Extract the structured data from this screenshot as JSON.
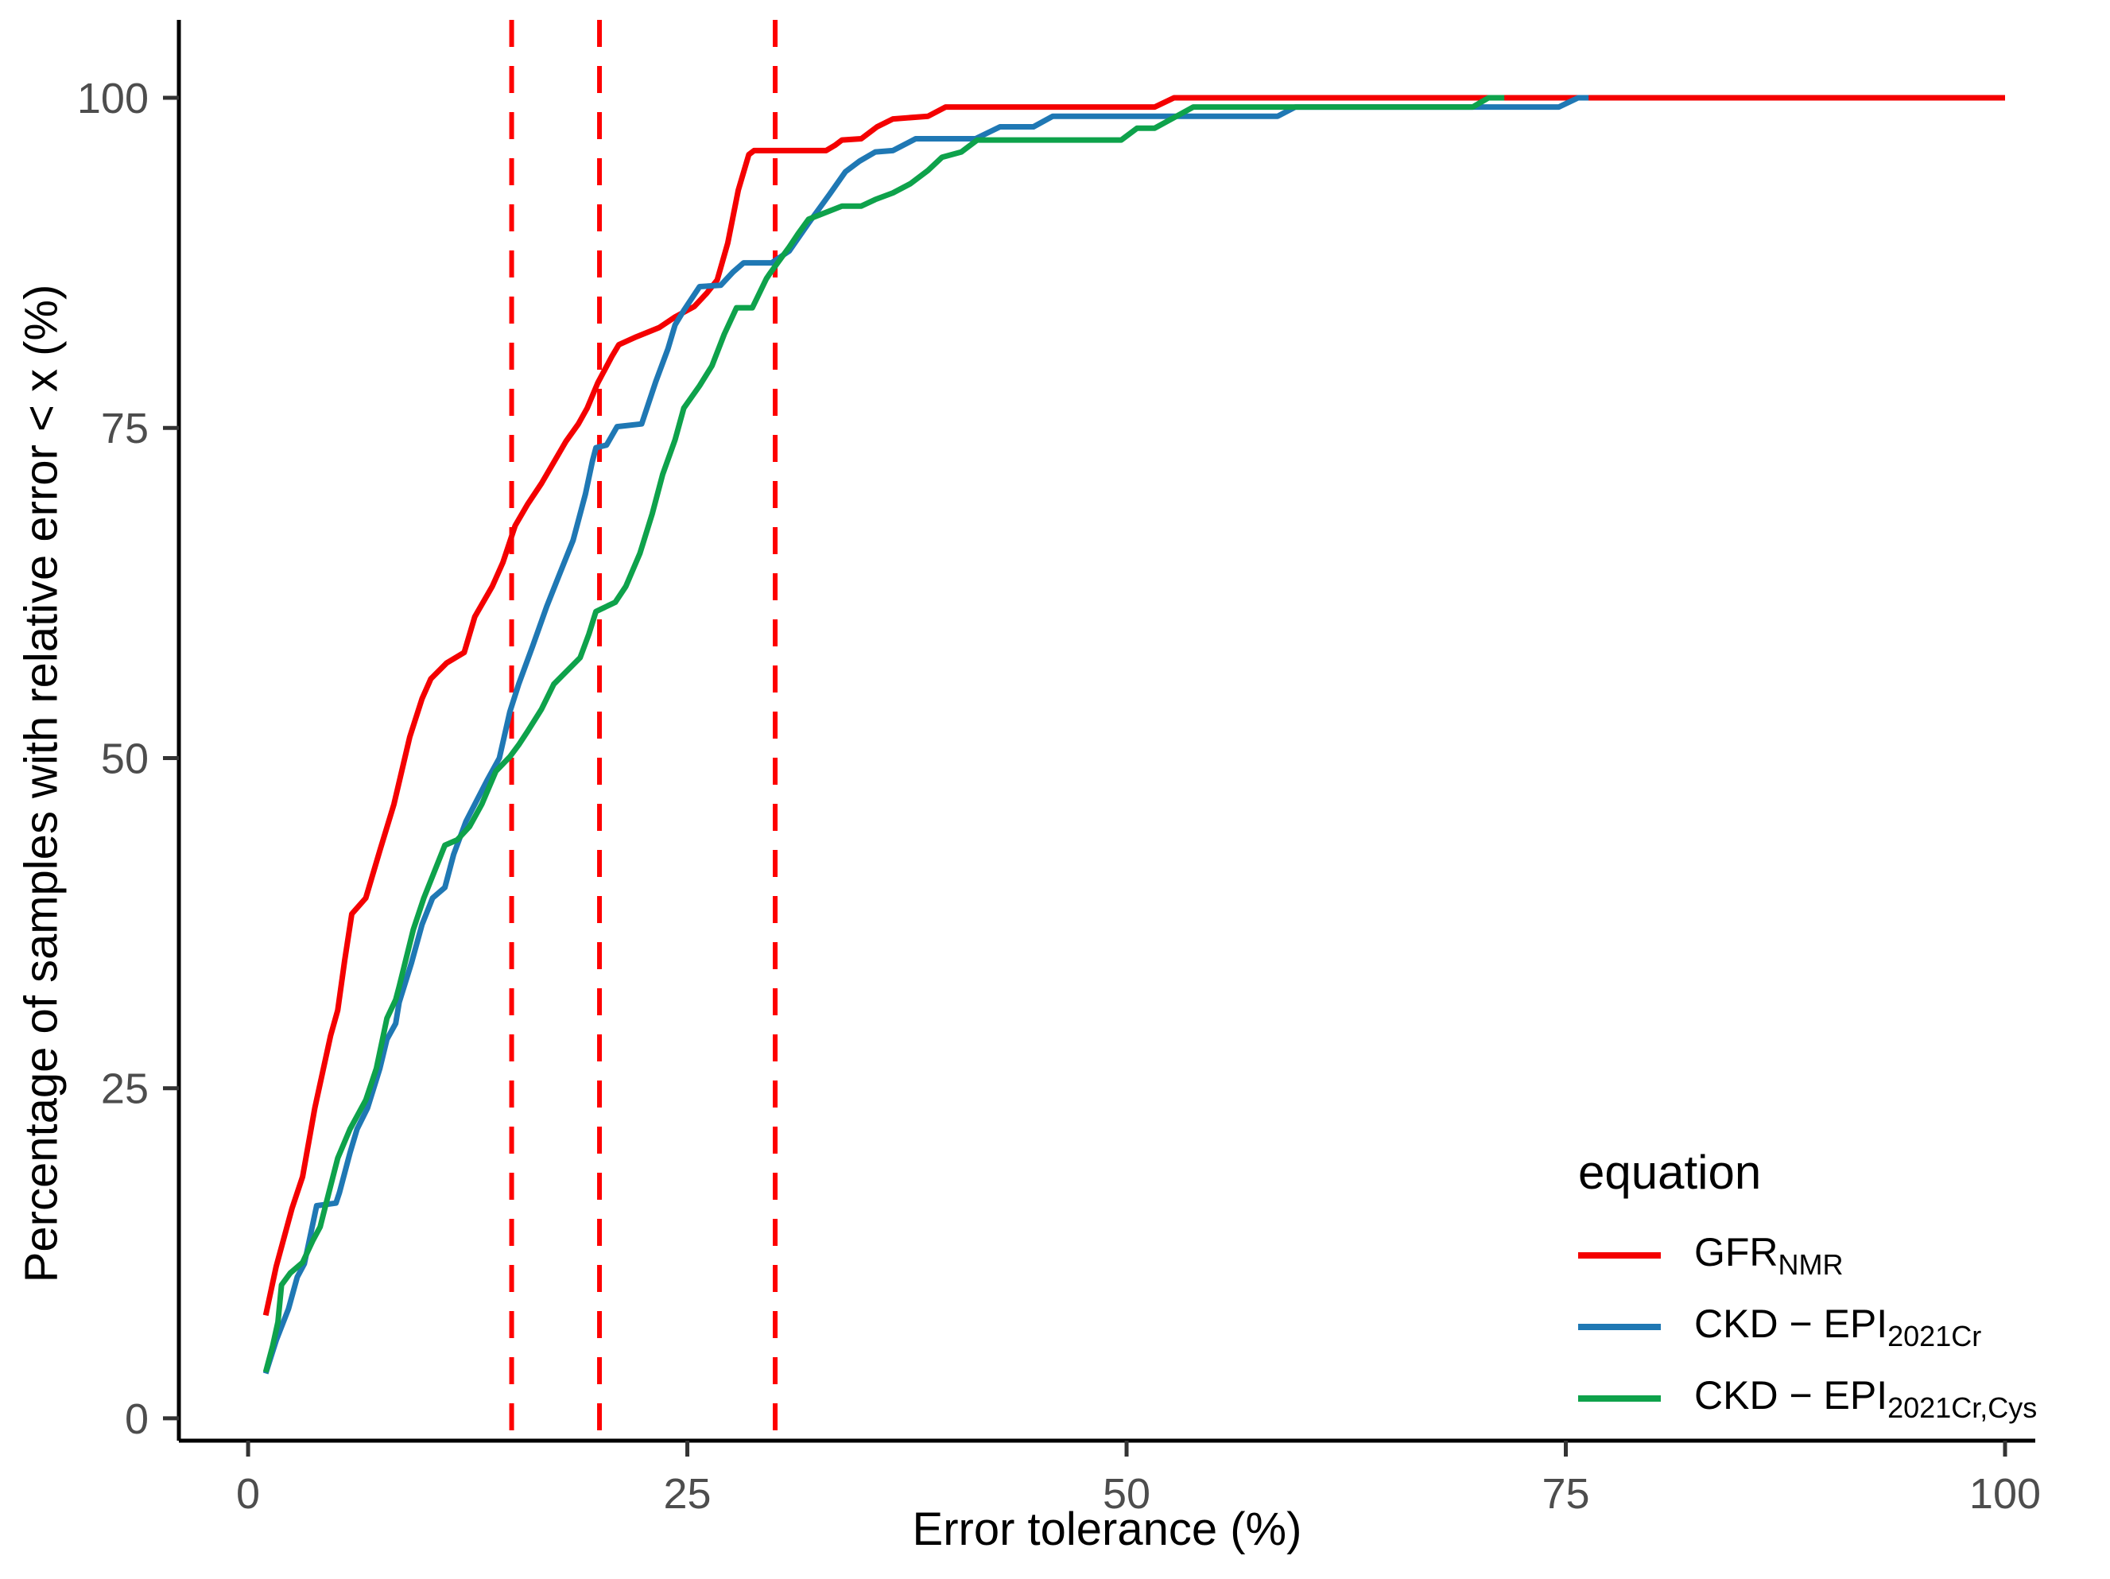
{
  "chart_data": {
    "type": "line",
    "subtype": "ecdf-step-curves",
    "title": "",
    "xlabel": "Error tolerance (%)",
    "ylabel": "Percentage of samples with relative error < x (%)",
    "x_ticks": [
      0,
      25,
      50,
      75,
      100
    ],
    "y_ticks": [
      0,
      25,
      50,
      75,
      100
    ],
    "xlim": [
      -3.94,
      101.72
    ],
    "ylim": [
      -1.69,
      105.9
    ],
    "grid": "off",
    "axis_color": "#000000",
    "tick_label_color": "#4d4d4d",
    "reference_lines": {
      "color": "#fe0000",
      "style": "dashed",
      "x_values": [
        15,
        20,
        30
      ]
    },
    "legend": {
      "position": "bottom-right-inside",
      "title": "equation",
      "entries": [
        {
          "main": "GFR",
          "sub": "NMR",
          "color": "#f40000"
        },
        {
          "main": "CKD − EPI",
          "sub": "2021Cr",
          "color": "#1f78b4"
        },
        {
          "main": "CKD − EPI",
          "sub": "2021Cr,Cys",
          "color": "#0ea24b"
        }
      ]
    },
    "series": [
      {
        "name": "GFR_NMR",
        "color": "#f40000",
        "points": [
          [
            1,
            7.8
          ],
          [
            1.6,
            11.5
          ],
          [
            2.5,
            15.9
          ],
          [
            3.1,
            18.3
          ],
          [
            3.8,
            23.5
          ],
          [
            4.7,
            29
          ],
          [
            5.1,
            30.9
          ],
          [
            5.5,
            34.7
          ],
          [
            5.9,
            38.2
          ],
          [
            6.7,
            39.4
          ],
          [
            7.5,
            43
          ],
          [
            8.3,
            46.5
          ],
          [
            9.2,
            51.6
          ],
          [
            9.9,
            54.5
          ],
          [
            10.4,
            56
          ],
          [
            11.3,
            57.2
          ],
          [
            12.3,
            58
          ],
          [
            12.9,
            60.7
          ],
          [
            13.9,
            63
          ],
          [
            14.5,
            64.8
          ],
          [
            15.2,
            67.6
          ],
          [
            15.9,
            69.2
          ],
          [
            16.7,
            70.8
          ],
          [
            17.4,
            72.4
          ],
          [
            18.1,
            74
          ],
          [
            18.8,
            75.3
          ],
          [
            19.3,
            76.5
          ],
          [
            19.9,
            78.4
          ],
          [
            20.7,
            80.4
          ],
          [
            21.1,
            81.3
          ],
          [
            22.1,
            81.9
          ],
          [
            23.4,
            82.6
          ],
          [
            24.3,
            83.4
          ],
          [
            25.4,
            84.2
          ],
          [
            26.1,
            85.2
          ],
          [
            26.7,
            86.2
          ],
          [
            27.3,
            89
          ],
          [
            27.9,
            93
          ],
          [
            28.5,
            95.7
          ],
          [
            28.8,
            96
          ],
          [
            32.9,
            96
          ],
          [
            33.4,
            96.4
          ],
          [
            33.8,
            96.8
          ],
          [
            34.9,
            96.9
          ],
          [
            35.8,
            97.8
          ],
          [
            36.7,
            98.4
          ],
          [
            38.7,
            98.6
          ],
          [
            39.7,
            99.3
          ],
          [
            51.6,
            99.3
          ],
          [
            52.7,
            100
          ],
          [
            100,
            100
          ]
        ]
      },
      {
        "name": "CKD-EPI_2021Cr",
        "color": "#1f78b4",
        "points": [
          [
            1,
            3.4
          ],
          [
            1.6,
            5.9
          ],
          [
            2.3,
            8.3
          ],
          [
            2.8,
            10.7
          ],
          [
            3.2,
            11.7
          ],
          [
            3.9,
            16.1
          ],
          [
            5,
            16.3
          ],
          [
            5.2,
            17.1
          ],
          [
            5.8,
            20.1
          ],
          [
            6.2,
            21.9
          ],
          [
            6.8,
            23.5
          ],
          [
            7.5,
            26.5
          ],
          [
            7.9,
            28.7
          ],
          [
            8.4,
            29.9
          ],
          [
            8.6,
            31.5
          ],
          [
            9.3,
            34.5
          ],
          [
            9.9,
            37.4
          ],
          [
            10.5,
            39.4
          ],
          [
            11.2,
            40.2
          ],
          [
            11.7,
            42.7
          ],
          [
            12.4,
            45.2
          ],
          [
            12.9,
            46.5
          ],
          [
            13.6,
            48.3
          ],
          [
            14.3,
            50
          ],
          [
            14.9,
            53.5
          ],
          [
            15.4,
            55.6
          ],
          [
            16.2,
            58.5
          ],
          [
            17,
            61.5
          ],
          [
            17.6,
            63.5
          ],
          [
            18.5,
            66.5
          ],
          [
            19.2,
            70
          ],
          [
            19.6,
            72.5
          ],
          [
            19.8,
            73.5
          ],
          [
            20.4,
            73.7
          ],
          [
            21,
            75.1
          ],
          [
            22.4,
            75.3
          ],
          [
            23.2,
            78.5
          ],
          [
            23.9,
            81
          ],
          [
            24.3,
            82.8
          ],
          [
            24.8,
            83.9
          ],
          [
            25.7,
            85.7
          ],
          [
            26.9,
            85.8
          ],
          [
            27.6,
            86.8
          ],
          [
            28.2,
            87.5
          ],
          [
            29.8,
            87.5
          ],
          [
            30.8,
            88.4
          ],
          [
            31.9,
            90.5
          ],
          [
            33.1,
            92.7
          ],
          [
            34,
            94.4
          ],
          [
            34.8,
            95.2
          ],
          [
            35.7,
            95.9
          ],
          [
            36.7,
            96
          ],
          [
            38,
            96.9
          ],
          [
            41.4,
            96.9
          ],
          [
            42.8,
            97.8
          ],
          [
            44.7,
            97.8
          ],
          [
            45.8,
            98.6
          ],
          [
            58.6,
            98.6
          ],
          [
            59.6,
            99.3
          ],
          [
            74.6,
            99.3
          ],
          [
            75.7,
            100
          ],
          [
            76.3,
            100
          ]
        ]
      },
      {
        "name": "CKD-EPI_2021Cr,Cys",
        "color": "#0ea24b",
        "points": [
          [
            1,
            3.5
          ],
          [
            1.4,
            5.5
          ],
          [
            1.7,
            7.3
          ],
          [
            1.9,
            10.1
          ],
          [
            2.4,
            11
          ],
          [
            3.1,
            11.8
          ],
          [
            3.7,
            13.5
          ],
          [
            4.1,
            14.5
          ],
          [
            4.6,
            17.1
          ],
          [
            5.1,
            19.7
          ],
          [
            5.8,
            21.9
          ],
          [
            6.7,
            24.1
          ],
          [
            7.3,
            26.5
          ],
          [
            7.9,
            30.3
          ],
          [
            8.4,
            31.7
          ],
          [
            8.6,
            32.7
          ],
          [
            9.4,
            37
          ],
          [
            10,
            39.4
          ],
          [
            11.2,
            43.4
          ],
          [
            11.9,
            43.8
          ],
          [
            12.6,
            44.8
          ],
          [
            13.3,
            46.5
          ],
          [
            14.1,
            49
          ],
          [
            14.9,
            50.1
          ],
          [
            15.4,
            51
          ],
          [
            15.9,
            52
          ],
          [
            16.7,
            53.7
          ],
          [
            17.4,
            55.6
          ],
          [
            18.9,
            57.6
          ],
          [
            19.4,
            59.4
          ],
          [
            19.8,
            61.1
          ],
          [
            20.9,
            61.8
          ],
          [
            21.5,
            63
          ],
          [
            22.3,
            65.5
          ],
          [
            23,
            68.5
          ],
          [
            23.6,
            71.5
          ],
          [
            24.3,
            74.1
          ],
          [
            24.8,
            76.5
          ],
          [
            25.7,
            78.2
          ],
          [
            26.4,
            79.7
          ],
          [
            27.1,
            82.1
          ],
          [
            27.8,
            84.1
          ],
          [
            28.7,
            84.1
          ],
          [
            29.5,
            86.3
          ],
          [
            29.7,
            86.7
          ],
          [
            30.8,
            88.7
          ],
          [
            31.3,
            89.7
          ],
          [
            31.9,
            90.8
          ],
          [
            33.8,
            91.8
          ],
          [
            34.9,
            91.8
          ],
          [
            35.7,
            92.3
          ],
          [
            36.7,
            92.8
          ],
          [
            37.7,
            93.5
          ],
          [
            38.7,
            94.5
          ],
          [
            39.5,
            95.5
          ],
          [
            40.6,
            95.9
          ],
          [
            41.5,
            96.8
          ],
          [
            49.7,
            96.8
          ],
          [
            50.6,
            97.7
          ],
          [
            51.6,
            97.7
          ],
          [
            52.7,
            98.5
          ],
          [
            53.8,
            99.3
          ],
          [
            69.7,
            99.3
          ],
          [
            70.6,
            100
          ],
          [
            71.5,
            100
          ]
        ]
      }
    ]
  }
}
